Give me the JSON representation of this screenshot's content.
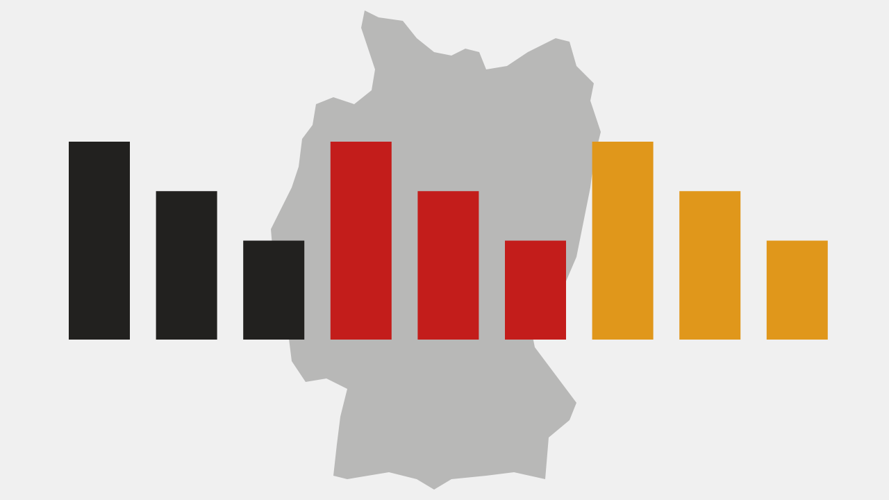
{
  "chart_data": {
    "type": "bar",
    "categories": [
      null,
      null,
      null
    ],
    "series": [
      {
        "color": "#22211f",
        "values": [
          100,
          75,
          50
        ]
      },
      {
        "color": "#c31d1b",
        "values": [
          100,
          75,
          50
        ]
      },
      {
        "color": "#e0971b",
        "values": [
          100,
          75,
          50
        ]
      }
    ],
    "ylim": [
      0,
      100
    ]
  }
}
